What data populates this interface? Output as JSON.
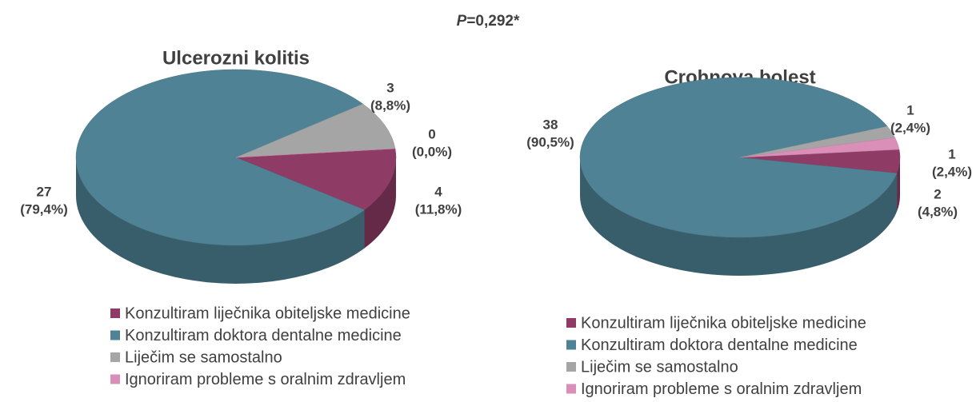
{
  "annotation": "P=0,292*",
  "chart_data": [
    {
      "type": "pie",
      "title": "Ulcerozni kolitis",
      "categories": [
        "Konzultiram liječnika obiteljske medicine",
        "Konzultiram doktora dentalne medicine",
        "Liječim se samostalno",
        "Ignoriram probleme s oralnim zdravljem"
      ],
      "values": [
        4,
        27,
        3,
        0
      ],
      "percent_labels": [
        "(11,8%)",
        "(79,4%)",
        "(8,8%)",
        "(0,0%)"
      ],
      "colors": [
        "#8e3b66",
        "#4f8294",
        "#a5a5a5",
        "#d98fb8"
      ]
    },
    {
      "type": "pie",
      "title": "Crohnova bolest",
      "categories": [
        "Konzultiram liječnika obiteljske medicine",
        "Konzultiram doktora dentalne medicine",
        "Liječim se samostalno",
        "Ignoriram probleme s oralnim zdravljem"
      ],
      "values": [
        2,
        38,
        1,
        1
      ],
      "percent_labels": [
        "(4,8%)",
        "(90,5%)",
        "(2,4%)",
        "(2,4%)"
      ],
      "colors": [
        "#8e3b66",
        "#4f8294",
        "#a5a5a5",
        "#d98fb8"
      ]
    }
  ]
}
